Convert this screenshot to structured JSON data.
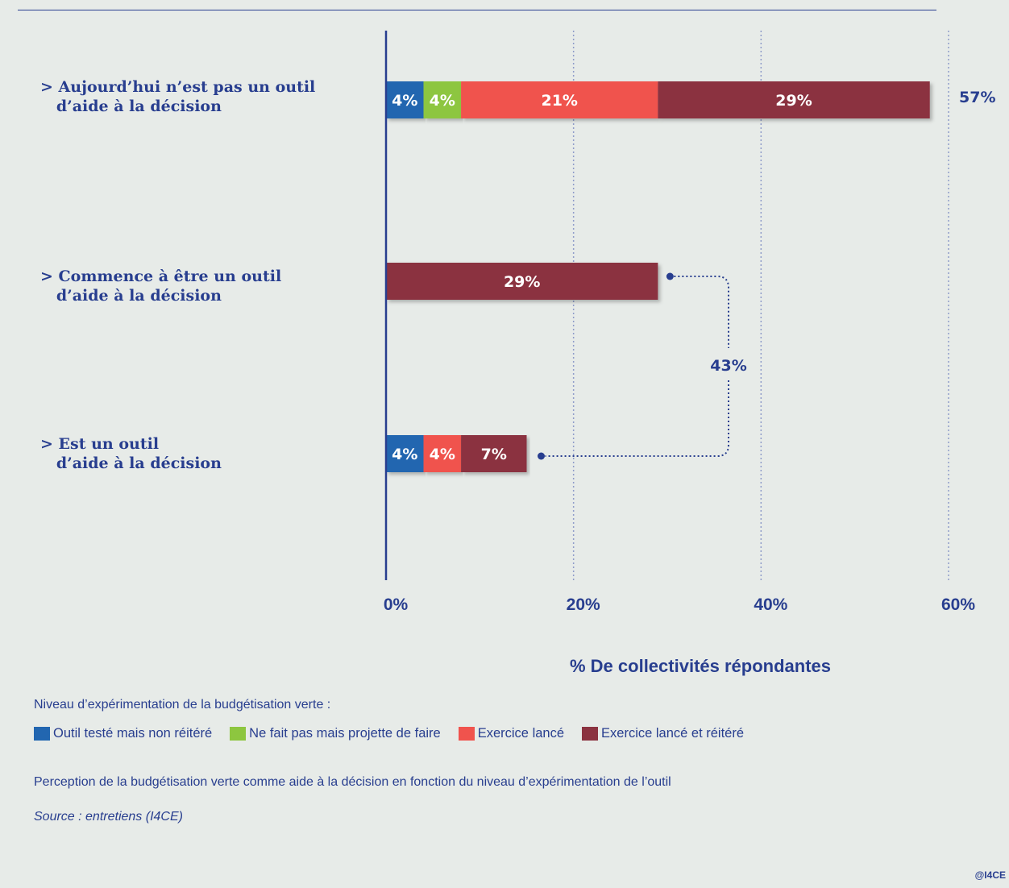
{
  "chart_data": {
    "type": "bar",
    "orientation": "horizontal",
    "stacked": true,
    "categories": [
      "> Aujourd’hui n’est pas un outil\n   d’aide à la décision",
      "> Commence à être un outil\n   d’aide à la décision",
      "> Est un outil\n   d’aide à la décision"
    ],
    "series": [
      {
        "name": "Outil testé mais non réitéré",
        "color": "#2266b0",
        "values": [
          4,
          0,
          4
        ],
        "labels": [
          "4%",
          "",
          "4%"
        ]
      },
      {
        "name": "Ne fait pas mais projette de faire",
        "color": "#8dc63f",
        "values": [
          4,
          0,
          0
        ],
        "labels": [
          "4%",
          "",
          ""
        ]
      },
      {
        "name": "Exercice lancé",
        "color": "#f0534d",
        "values": [
          21,
          0,
          4
        ],
        "labels": [
          "21%",
          "",
          "4%"
        ]
      },
      {
        "name": "Exercice lancé et réitéré",
        "color": "#8b3340",
        "values": [
          29,
          29,
          7
        ],
        "labels": [
          "29%",
          "29%",
          "7%"
        ]
      }
    ],
    "totals": [
      {
        "category_index": 0,
        "label": "57%"
      }
    ],
    "bracket": {
      "label": "43%",
      "connects": [
        1,
        2
      ]
    },
    "xlim": [
      0,
      60
    ],
    "xticks": [
      0,
      20,
      40,
      60
    ],
    "xtick_labels": [
      "0%",
      "20%",
      "40%",
      "60%"
    ],
    "xlabel": "% De collectivités répondantes",
    "grid": true,
    "legend_title": "Niveau d’expérimentation de la budgétisation verte :",
    "legend_position": "bottom-left",
    "caption": "Perception de la budgétisation verte comme aide à la décision en fonction du niveau d’expérimentation de l’outil",
    "source": "Source : entretiens (I4CE)",
    "credit": "@I4CE"
  }
}
